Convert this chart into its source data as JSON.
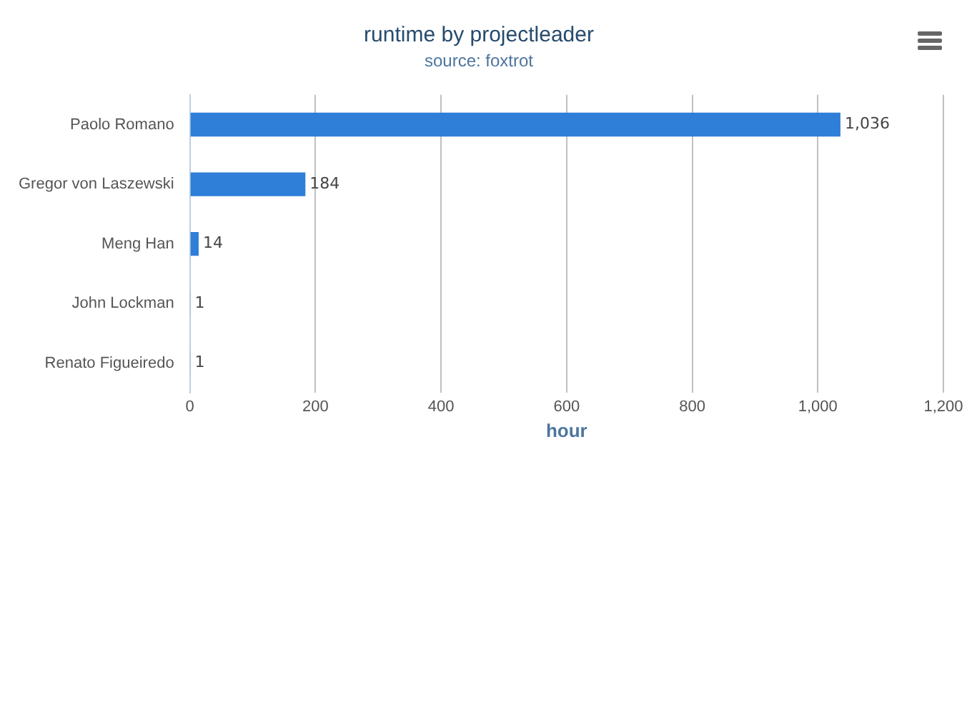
{
  "chart_data": {
    "type": "bar",
    "orientation": "horizontal",
    "title": "runtime by projectleader",
    "subtitle": "source: foxtrot",
    "xlabel": "hour",
    "categories": [
      "Paolo Romano",
      "Gregor von Laszewski",
      "Meng Han",
      "John Lockman",
      "Renato Figueiredo"
    ],
    "values": [
      1036,
      184,
      14,
      1,
      1
    ],
    "color": "#2f7ed8",
    "value_labels": [
      "1,036",
      "184",
      "14",
      "1",
      "1"
    ],
    "xlim": [
      0,
      1200
    ],
    "xticks": [
      0,
      200,
      400,
      600,
      800,
      {
        "value": 1000,
        "label": "1,000"
      },
      {
        "value": 1200,
        "label": "1,200"
      }
    ],
    "grid": "x",
    "legend": false
  }
}
